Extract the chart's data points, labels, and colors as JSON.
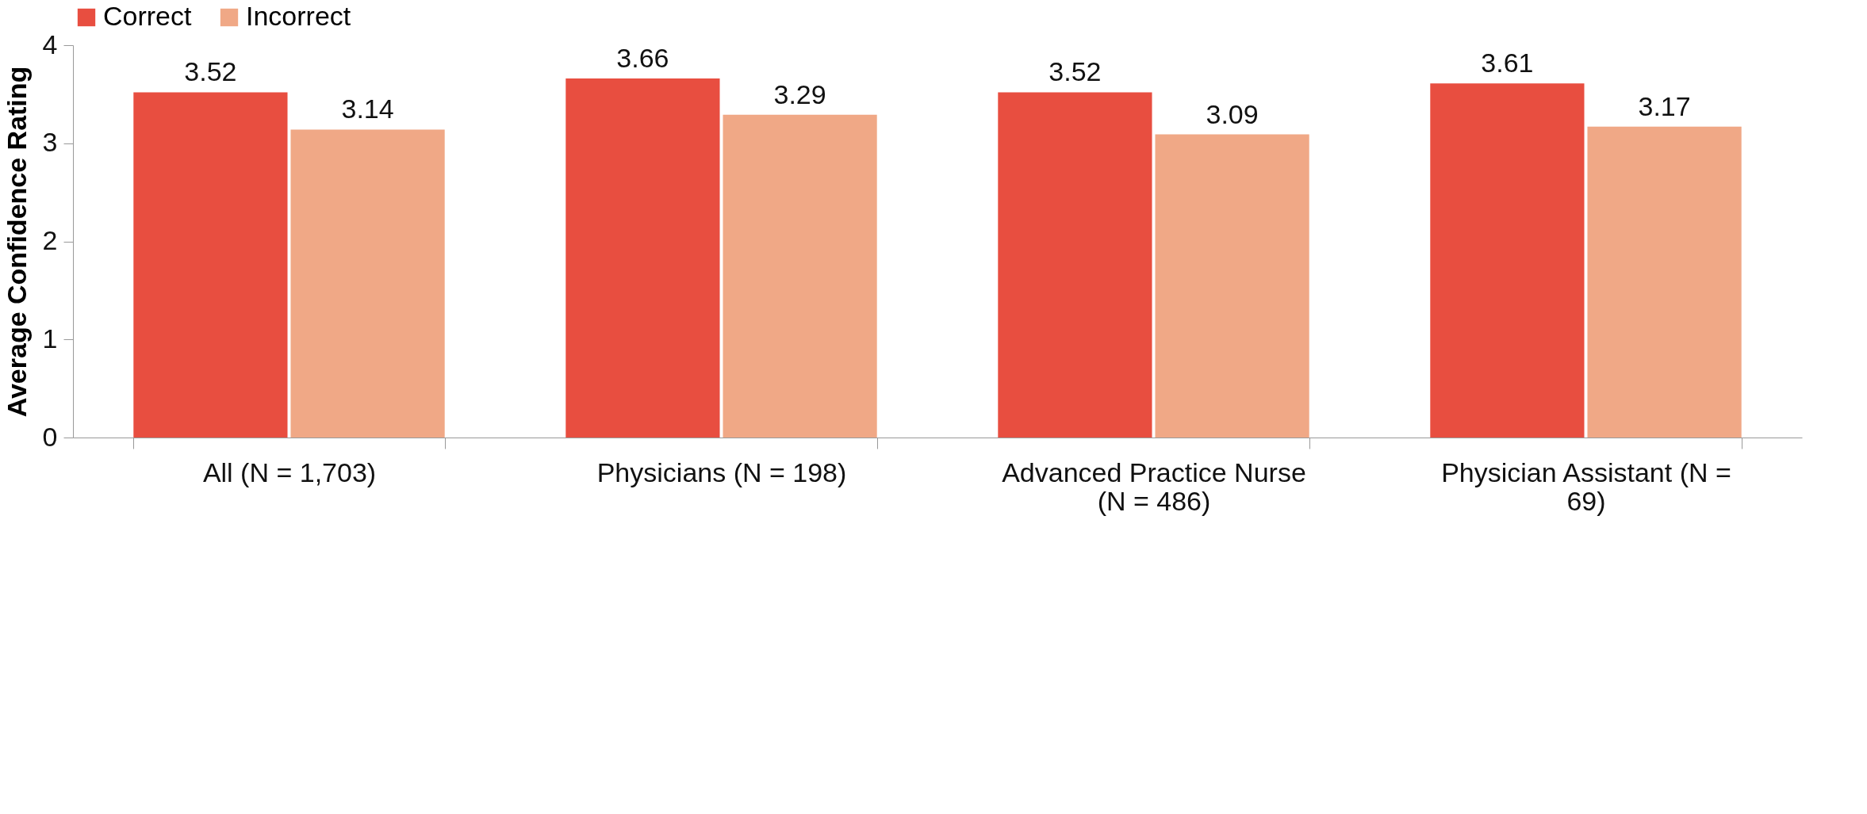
{
  "chart_data": {
    "type": "bar",
    "categories": [
      "All (N = 1,703)",
      "Physicians (N = 198)",
      "Advanced Practice Nurse (N = 486)",
      "Physician Assistant (N = 69)"
    ],
    "series": [
      {
        "name": "Correct",
        "color": "#e84e40",
        "values": [
          3.52,
          3.66,
          3.52,
          3.61
        ]
      },
      {
        "name": "Incorrect",
        "color": "#f0a886",
        "values": [
          3.14,
          3.29,
          3.09,
          3.17
        ]
      }
    ],
    "ylabel": "Average Confidence Rating",
    "ylim": [
      0,
      4
    ],
    "yticks": [
      0,
      1,
      2,
      3,
      4
    ],
    "data_labels": true,
    "grid": false,
    "legend": "top"
  }
}
